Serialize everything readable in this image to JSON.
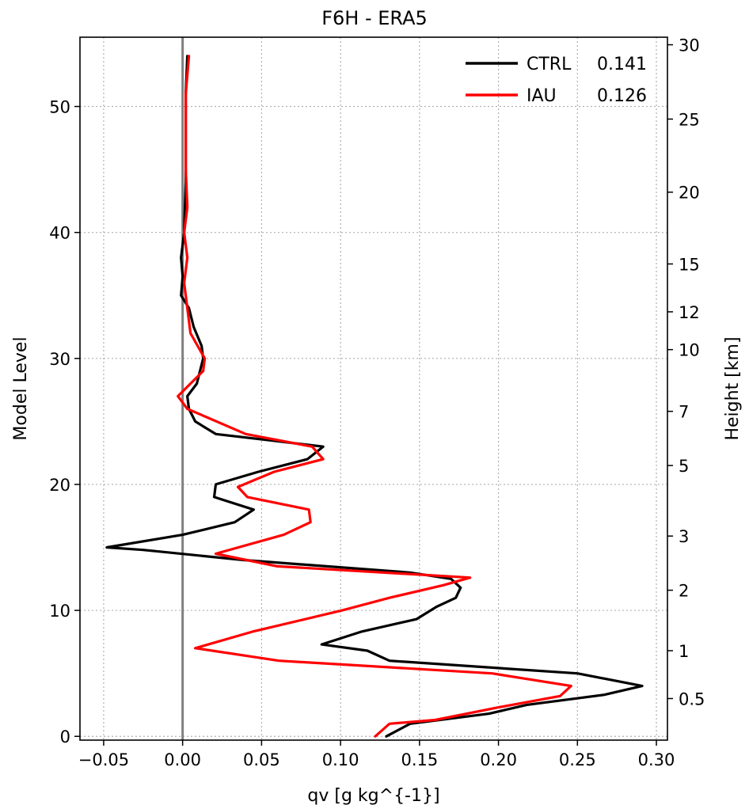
{
  "chart_data": {
    "type": "line",
    "title": "F6H - ERA5",
    "xlabel": "qv [g kg^{-1}]",
    "ylabel": "Model Level",
    "y2label": "Height [km]",
    "xlim": [
      -0.065,
      0.307
    ],
    "ylim": [
      -0.3,
      55.5
    ],
    "xticks": [
      -0.05,
      0.0,
      0.05,
      0.1,
      0.15,
      0.2,
      0.25,
      0.3
    ],
    "xtick_labels": [
      "−0.05",
      "0.00",
      "0.05",
      "0.10",
      "0.15",
      "0.20",
      "0.25",
      "0.30"
    ],
    "yticks": [
      0,
      10,
      20,
      30,
      40,
      50
    ],
    "ytick_labels": [
      "0",
      "10",
      "20",
      "30",
      "40",
      "50"
    ],
    "y2ticks": [
      {
        "label": "0.5",
        "level": 3.0
      },
      {
        "label": "1",
        "level": 6.8
      },
      {
        "label": "2",
        "level": 11.6
      },
      {
        "label": "3",
        "level": 15.9
      },
      {
        "label": "5",
        "level": 21.5
      },
      {
        "label": "7",
        "level": 25.8
      },
      {
        "label": "10",
        "level": 30.7
      },
      {
        "label": "12",
        "level": 33.7
      },
      {
        "label": "15",
        "level": 37.5
      },
      {
        "label": "20",
        "level": 43.2
      },
      {
        "label": "25",
        "level": 49.0
      },
      {
        "label": "30",
        "level": 54.9
      }
    ],
    "grid": true,
    "legend_position": "top-right",
    "zero_line_color": "#808080",
    "series": [
      {
        "name": "CTRL",
        "score": "0.141",
        "color": "#000000",
        "points": [
          [
            0.129,
            0
          ],
          [
            0.144,
            1
          ],
          [
            0.194,
            1.8
          ],
          [
            0.218,
            2.5
          ],
          [
            0.267,
            3.3
          ],
          [
            0.291,
            4.0
          ],
          [
            0.25,
            5.0
          ],
          [
            0.131,
            6.0
          ],
          [
            0.117,
            6.8
          ],
          [
            0.088,
            7.3
          ],
          [
            0.113,
            8.3
          ],
          [
            0.148,
            9.3
          ],
          [
            0.161,
            10.3
          ],
          [
            0.173,
            11.0
          ],
          [
            0.176,
            11.8
          ],
          [
            0.17,
            12.5
          ],
          [
            0.144,
            13.0
          ],
          [
            0.038,
            14.0
          ],
          [
            -0.025,
            14.8
          ],
          [
            -0.048,
            15.0
          ],
          [
            0.0,
            16.0
          ],
          [
            0.033,
            17.0
          ],
          [
            0.045,
            18.0
          ],
          [
            0.02,
            19.0
          ],
          [
            0.021,
            20.0
          ],
          [
            0.048,
            21.0
          ],
          [
            0.079,
            22.0
          ],
          [
            0.089,
            23.0
          ],
          [
            0.055,
            23.5
          ],
          [
            0.021,
            24.0
          ],
          [
            0.008,
            25.0
          ],
          [
            0.004,
            26.0
          ],
          [
            0.003,
            27.0
          ],
          [
            0.009,
            28.0
          ],
          [
            0.013,
            30.0
          ],
          [
            0.012,
            31.0
          ],
          [
            0.007,
            32.5
          ],
          [
            0.004,
            34.0
          ],
          [
            -0.001,
            35.0
          ],
          [
            0.0,
            36.5
          ],
          [
            -0.001,
            38.0
          ],
          [
            0.001,
            40.0
          ],
          [
            0.002,
            44.0
          ],
          [
            0.002,
            48.0
          ],
          [
            0.002,
            51.0
          ],
          [
            0.003,
            54.0
          ]
        ]
      },
      {
        "name": "IAU",
        "score": "0.126",
        "color": "#ff0000",
        "points": [
          [
            0.122,
            0
          ],
          [
            0.131,
            1.0
          ],
          [
            0.16,
            1.3
          ],
          [
            0.2,
            2.3
          ],
          [
            0.239,
            3.2
          ],
          [
            0.246,
            4.0
          ],
          [
            0.196,
            5.0
          ],
          [
            0.061,
            6.0
          ],
          [
            0.008,
            7.0
          ],
          [
            0.044,
            8.3
          ],
          [
            0.101,
            10.0
          ],
          [
            0.131,
            11.0
          ],
          [
            0.165,
            12.0
          ],
          [
            0.182,
            12.6
          ],
          [
            0.06,
            13.5
          ],
          [
            0.021,
            14.5
          ],
          [
            0.064,
            16.0
          ],
          [
            0.081,
            17.0
          ],
          [
            0.08,
            18.0
          ],
          [
            0.041,
            19.0
          ],
          [
            0.035,
            19.8
          ],
          [
            0.058,
            21.0
          ],
          [
            0.089,
            22.0
          ],
          [
            0.082,
            23.0
          ],
          [
            0.04,
            24.0
          ],
          [
            0.003,
            26.0
          ],
          [
            -0.003,
            27.0
          ],
          [
            0.013,
            29.0
          ],
          [
            0.014,
            30.0
          ],
          [
            0.005,
            32.0
          ],
          [
            0.003,
            34.0
          ],
          [
            0.001,
            36.0
          ],
          [
            0.003,
            38.0
          ],
          [
            0.001,
            40.0
          ],
          [
            0.003,
            42.0
          ],
          [
            0.002,
            45.0
          ],
          [
            0.002,
            48.0
          ],
          [
            0.002,
            51.0
          ],
          [
            0.004,
            54.0
          ]
        ]
      }
    ]
  }
}
